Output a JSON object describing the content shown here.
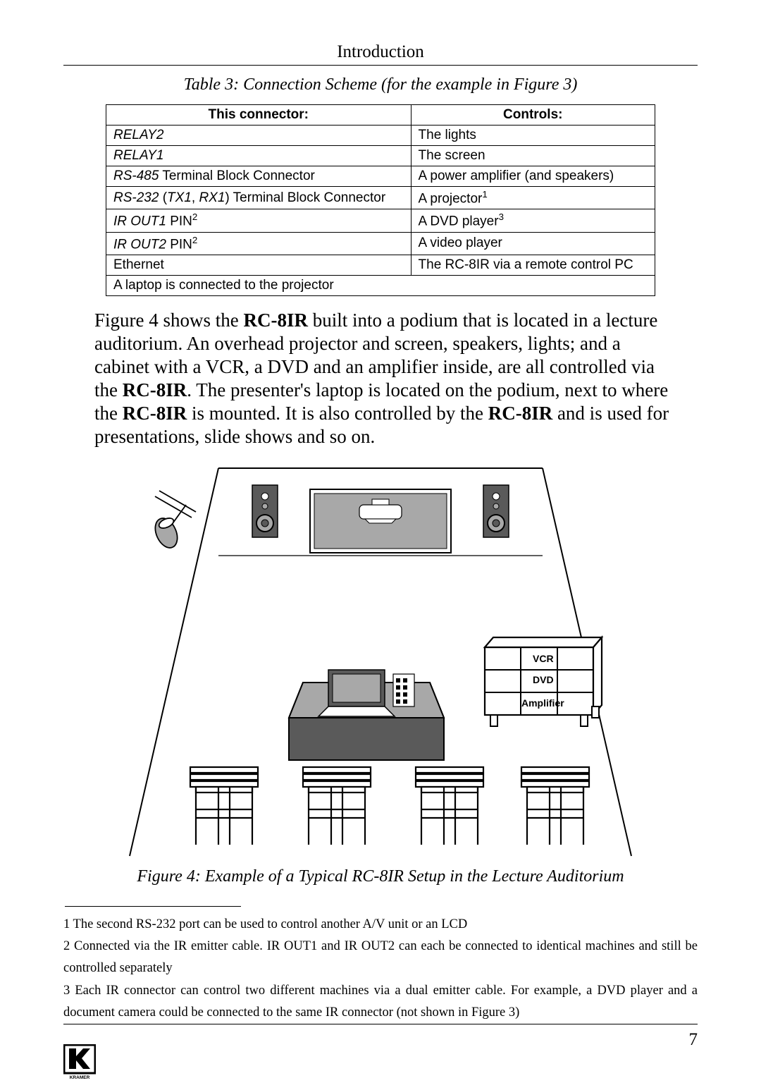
{
  "header": {
    "section": "Introduction"
  },
  "table": {
    "caption": "Table 3: Connection Scheme (for the example in Figure 3)",
    "headers": [
      "This connector:",
      "Controls:"
    ],
    "rows": [
      {
        "c0_html": "<span class='it'>RELAY2</span>",
        "c1": "The lights"
      },
      {
        "c0_html": "<span class='it'>RELAY1</span>",
        "c1": "The screen"
      },
      {
        "c0_html": "<span class='it'>RS-485</span> Terminal Block Connector",
        "c1": "A power amplifier (and speakers)"
      },
      {
        "c0_html": "<span class='it'>RS-232</span> (<span class='it'>TX1</span>, <span class='it'>RX1</span>) Terminal Block Connector",
        "c1_html": "A projector<sup>1</sup>"
      },
      {
        "c0_html": "<span class='it'>IR OUT1</span> PIN<sup>2</sup>",
        "c1_html": "A DVD player<sup>3</sup>"
      },
      {
        "c0_html": "<span class='it'>IR OUT2</span> PIN<sup>2</sup>",
        "c1": "A video player"
      },
      {
        "c0_html": "Ethernet",
        "c1": "The RC-8IR via a remote control PC"
      }
    ],
    "spanrow": "A laptop is connected to the projector"
  },
  "body": {
    "text_html": "Figure 4 shows the <b>RC-8IR</b> built into a podium that is located in a lecture auditorium. An overhead projector and screen, speakers, lights; and a cabinet with a VCR, a DVD and an amplifier inside, are all controlled via the <b>RC-8IR</b>. The presenter's laptop is located on the podium, next to where the <b>RC-8IR</b> is mounted. It is also controlled by the <b>RC-8IR</b> and is used for presentations, slide shows and so on."
  },
  "figure": {
    "caption": "Figure 4: Example of a Typical RC-8IR Setup in the Lecture Auditorium",
    "labels": {
      "vcr": "VCR",
      "dvd": "DVD",
      "amp": "Amplifier"
    },
    "colors": {
      "line": "#000000",
      "fill_dark": "#5a5a5a",
      "fill_mid": "#a8a8a8",
      "fill_light": "#ffffff",
      "bg": "#ffffff"
    }
  },
  "footnotes": [
    "1 The second RS-232 port can be used to control another A/V unit or an LCD",
    "2 Connected via the IR emitter cable. IR OUT1 and IR OUT2 can each be connected to identical machines and still be controlled separately",
    "3 Each IR connector can control two different machines via a dual emitter cable. For example, a DVD player and a document camera could be connected to the same IR connector (not shown in Figure 3)"
  ],
  "footer": {
    "page": "7",
    "logo_text": "KRAMER"
  }
}
